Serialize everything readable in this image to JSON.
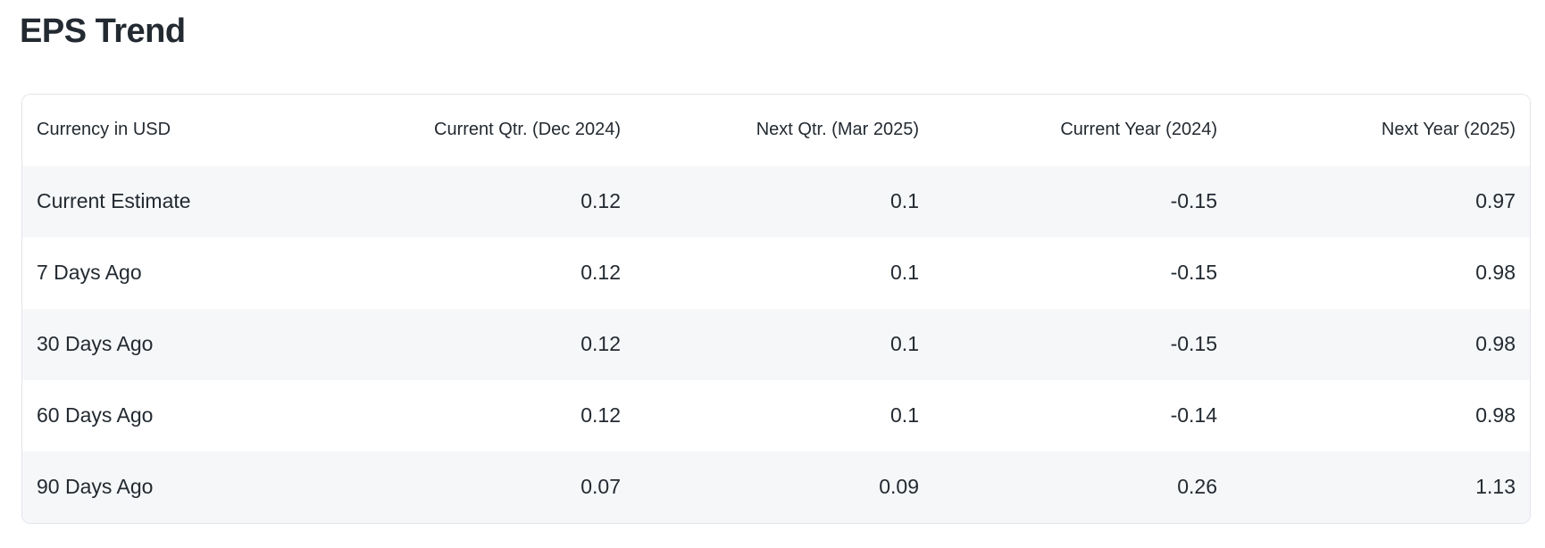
{
  "title": "EPS Trend",
  "colors": {
    "background": "#ffffff",
    "text": "#232a31",
    "row_stripe": "#f6f7f9",
    "card_border": "#e2e5e9"
  },
  "table": {
    "headers": [
      "Currency in USD",
      "Current Qtr. (Dec 2024)",
      "Next Qtr. (Mar 2025)",
      "Current Year (2024)",
      "Next Year (2025)"
    ],
    "rows": [
      {
        "label": "Current Estimate",
        "values": [
          "0.12",
          "0.1",
          "-0.15",
          "0.97"
        ]
      },
      {
        "label": "7 Days Ago",
        "values": [
          "0.12",
          "0.1",
          "-0.15",
          "0.98"
        ]
      },
      {
        "label": "30 Days Ago",
        "values": [
          "0.12",
          "0.1",
          "-0.15",
          "0.98"
        ]
      },
      {
        "label": "60 Days Ago",
        "values": [
          "0.12",
          "0.1",
          "-0.14",
          "0.98"
        ]
      },
      {
        "label": "90 Days Ago",
        "values": [
          "0.07",
          "0.09",
          "0.26",
          "1.13"
        ]
      }
    ]
  }
}
